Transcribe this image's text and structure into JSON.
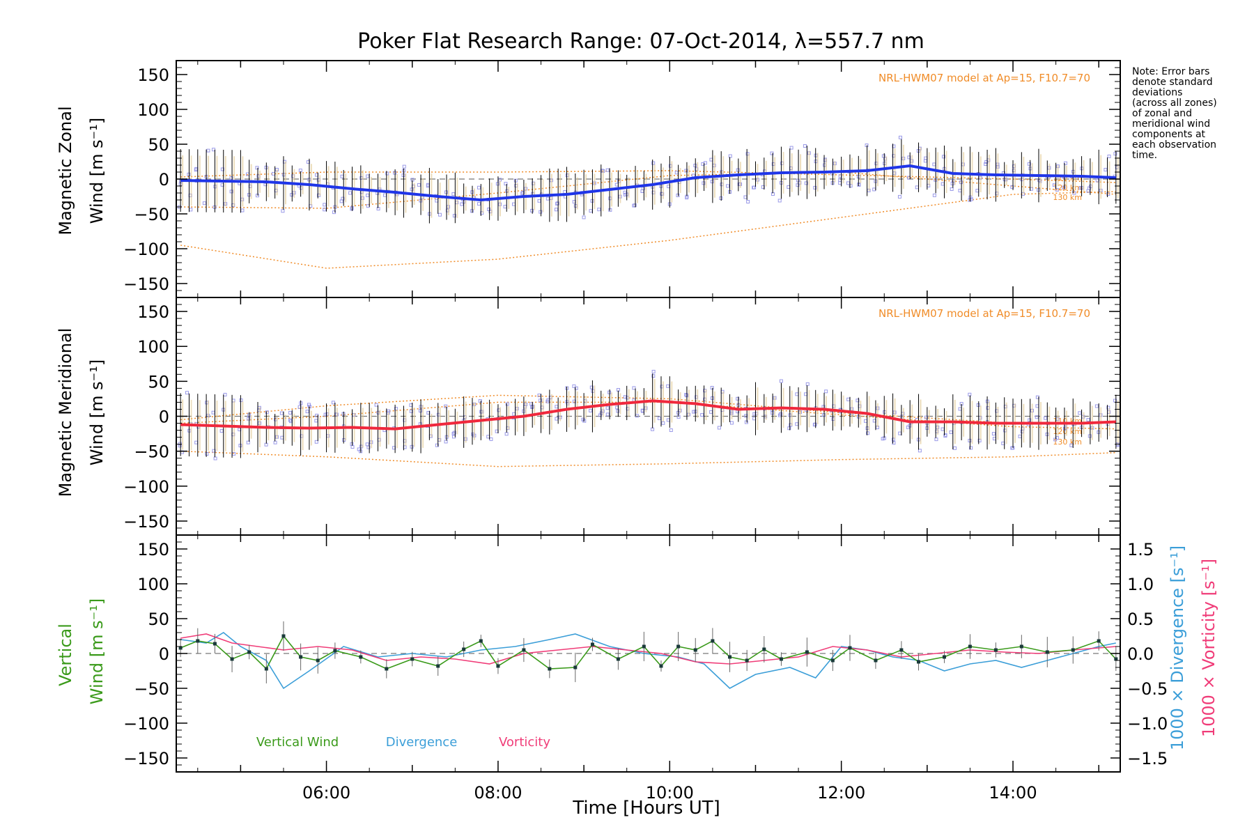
{
  "title": "Poker Flat Research Range: 07-Oct-2014, λ=557.7 nm",
  "note": [
    "Note: Error bars",
    "denote standard",
    "deviations",
    "(across all zones)",
    "of zonal and",
    "meridional wind",
    "components at",
    "each observation",
    "time."
  ],
  "model_label": "NRL-HWM07 model at Ap=15, F10.7=70",
  "height_labels": [
    "110 km",
    "120 km",
    "130 km"
  ],
  "xlabel": "Time [Hours UT]",
  "x_ticks": [
    "06:00",
    "08:00",
    "10:00",
    "12:00",
    "14:00"
  ],
  "y_ticks": [
    "150",
    "100",
    "50",
    "0",
    "−50",
    "−100",
    "−150"
  ],
  "right_ticks": [
    "1.5",
    "1.0",
    "0.5",
    "0.0",
    "−0.5",
    "−1.0",
    "−1.5"
  ],
  "panel1_ylabel": [
    "Magnetic Zonal",
    "Wind [m s⁻¹]"
  ],
  "panel2_ylabel": [
    "Magnetic Meridional",
    "Wind [m s⁻¹]"
  ],
  "panel3_ylabel": [
    "Vertical",
    "Wind [m s⁻¹]"
  ],
  "right_label_div": "1000 × Divergence [s⁻¹]",
  "right_label_vort": "1000 × Vorticity [s⁻¹]",
  "legend": [
    "Vertical Wind",
    "Divergence",
    "Vorticity"
  ],
  "colors": {
    "zonal": "#1f35e8",
    "meridional": "#f0283c",
    "vertical": "#3a9a1a",
    "divergence": "#3b9ed8",
    "vorticity": "#f03c78",
    "model": "#f08c28",
    "zones": "#9a9ae8",
    "error": "#000000"
  },
  "chart_data": [
    {
      "type": "line",
      "panel": "zonal",
      "xlim": [
        4.25,
        15.25
      ],
      "ylim": [
        -170,
        170
      ],
      "x": [
        4.3,
        4.8,
        5.3,
        5.8,
        6.3,
        6.8,
        7.3,
        7.8,
        8.3,
        8.8,
        9.3,
        9.8,
        10.3,
        10.8,
        11.3,
        11.8,
        12.3,
        12.8,
        13.3,
        13.8,
        14.3,
        14.8,
        15.2
      ],
      "values": [
        -2,
        -3,
        -4,
        -8,
        -14,
        -19,
        -25,
        -30,
        -25,
        -22,
        -15,
        -8,
        2,
        6,
        9,
        10,
        12,
        19,
        8,
        6,
        5,
        4,
        2
      ],
      "model": [
        {
          "name": "110 km",
          "x": [
            4.3,
            6.0,
            8.0,
            10.0,
            12.0,
            14.0,
            15.2
          ],
          "values": [
            3,
            10,
            10,
            12,
            6,
            0,
            -5
          ]
        },
        {
          "name": "120 km",
          "x": [
            4.3,
            6.0,
            8.0,
            10.0,
            12.0,
            14.0,
            15.2
          ],
          "values": [
            -40,
            -42,
            -20,
            5,
            10,
            -10,
            -22
          ]
        },
        {
          "name": "130 km",
          "x": [
            4.3,
            6.0,
            8.0,
            10.0,
            12.0,
            14.0,
            15.2
          ],
          "values": [
            -95,
            -128,
            -115,
            -88,
            -55,
            -22,
            -18
          ]
        }
      ]
    },
    {
      "type": "line",
      "panel": "meridional",
      "xlim": [
        4.25,
        15.25
      ],
      "ylim": [
        -170,
        170
      ],
      "x": [
        4.3,
        4.8,
        5.3,
        5.8,
        6.3,
        6.8,
        7.3,
        7.8,
        8.3,
        8.8,
        9.3,
        9.8,
        10.3,
        10.8,
        11.3,
        11.8,
        12.3,
        12.8,
        13.3,
        13.8,
        14.3,
        14.8,
        15.2
      ],
      "values": [
        -12,
        -14,
        -16,
        -17,
        -16,
        -18,
        -12,
        -6,
        0,
        10,
        17,
        22,
        18,
        10,
        12,
        10,
        4,
        -8,
        -8,
        -10,
        -10,
        -10,
        -8
      ],
      "model": [
        {
          "name": "110 km",
          "x": [
            4.3,
            6.0,
            8.0,
            10.0,
            12.0,
            14.0,
            15.2
          ],
          "values": [
            -5,
            15,
            30,
            25,
            5,
            -10,
            -8
          ]
        },
        {
          "name": "120 km",
          "x": [
            4.3,
            6.0,
            8.0,
            10.0,
            12.0,
            14.0,
            15.2
          ],
          "values": [
            -10,
            0,
            20,
            20,
            2,
            -15,
            -18
          ]
        },
        {
          "name": "130 km",
          "x": [
            4.3,
            6.0,
            8.0,
            10.0,
            12.0,
            14.0,
            15.2
          ],
          "values": [
            -50,
            -58,
            -72,
            -68,
            -62,
            -58,
            -52
          ]
        }
      ]
    },
    {
      "type": "line",
      "panel": "vertical",
      "xlim": [
        4.25,
        15.25
      ],
      "ylim": [
        -170,
        170
      ],
      "x": [
        4.3,
        4.5,
        4.7,
        4.9,
        5.1,
        5.3,
        5.5,
        5.7,
        5.9,
        6.1,
        6.4,
        6.7,
        7.0,
        7.3,
        7.6,
        7.8,
        8.0,
        8.3,
        8.6,
        8.9,
        9.1,
        9.4,
        9.7,
        9.9,
        10.1,
        10.3,
        10.5,
        10.7,
        10.9,
        11.1,
        11.3,
        11.6,
        11.9,
        12.1,
        12.4,
        12.7,
        12.9,
        13.2,
        13.5,
        13.8,
        14.1,
        14.4,
        14.7,
        15.0,
        15.2
      ],
      "values": [
        8,
        18,
        14,
        -8,
        2,
        -22,
        25,
        -5,
        -10,
        4,
        -5,
        -22,
        -8,
        -18,
        6,
        18,
        -18,
        5,
        -22,
        -20,
        13,
        -8,
        10,
        -18,
        10,
        5,
        18,
        -5,
        -10,
        6,
        -8,
        2,
        -10,
        8,
        -10,
        5,
        -12,
        -5,
        10,
        5,
        10,
        2,
        5,
        18,
        -8
      ],
      "series": [
        {
          "name": "Divergence",
          "scale": "right",
          "x": [
            4.3,
            4.6,
            4.8,
            5.0,
            5.3,
            5.5,
            5.8,
            6.2,
            6.6,
            7.0,
            7.4,
            7.8,
            8.2,
            8.6,
            8.9,
            9.3,
            9.7,
            10.1,
            10.4,
            10.7,
            11.0,
            11.4,
            11.7,
            12.0,
            12.3,
            12.6,
            12.9,
            13.2,
            13.5,
            13.8,
            14.1,
            14.4,
            14.7,
            15.0,
            15.2
          ],
          "values": [
            0.2,
            0.15,
            0.3,
            0.1,
            -0.1,
            -0.5,
            -0.25,
            0.1,
            -0.05,
            0.0,
            -0.05,
            0.05,
            0.1,
            0.2,
            0.28,
            0.1,
            0.0,
            -0.05,
            -0.15,
            -0.5,
            -0.3,
            -0.2,
            -0.35,
            0.1,
            0.05,
            -0.05,
            -0.1,
            -0.25,
            -0.15,
            -0.1,
            -0.2,
            -0.1,
            0.0,
            0.1,
            0.15
          ]
        },
        {
          "name": "Vorticity",
          "scale": "right",
          "x": [
            4.3,
            4.6,
            4.9,
            5.2,
            5.5,
            5.9,
            6.3,
            6.7,
            7.1,
            7.5,
            7.9,
            8.3,
            8.7,
            9.1,
            9.5,
            9.9,
            10.3,
            10.7,
            11.1,
            11.5,
            11.9,
            12.3,
            12.7,
            13.1,
            13.5,
            13.9,
            14.3,
            14.7,
            15.0,
            15.2
          ],
          "values": [
            0.22,
            0.28,
            0.15,
            0.1,
            0.05,
            0.1,
            0.05,
            -0.1,
            -0.05,
            -0.08,
            -0.15,
            0.0,
            0.05,
            0.1,
            0.05,
            0.0,
            -0.12,
            -0.15,
            -0.1,
            -0.05,
            0.1,
            0.05,
            -0.05,
            0.0,
            0.05,
            0.02,
            0.0,
            0.05,
            0.08,
            0.1
          ]
        }
      ]
    }
  ]
}
